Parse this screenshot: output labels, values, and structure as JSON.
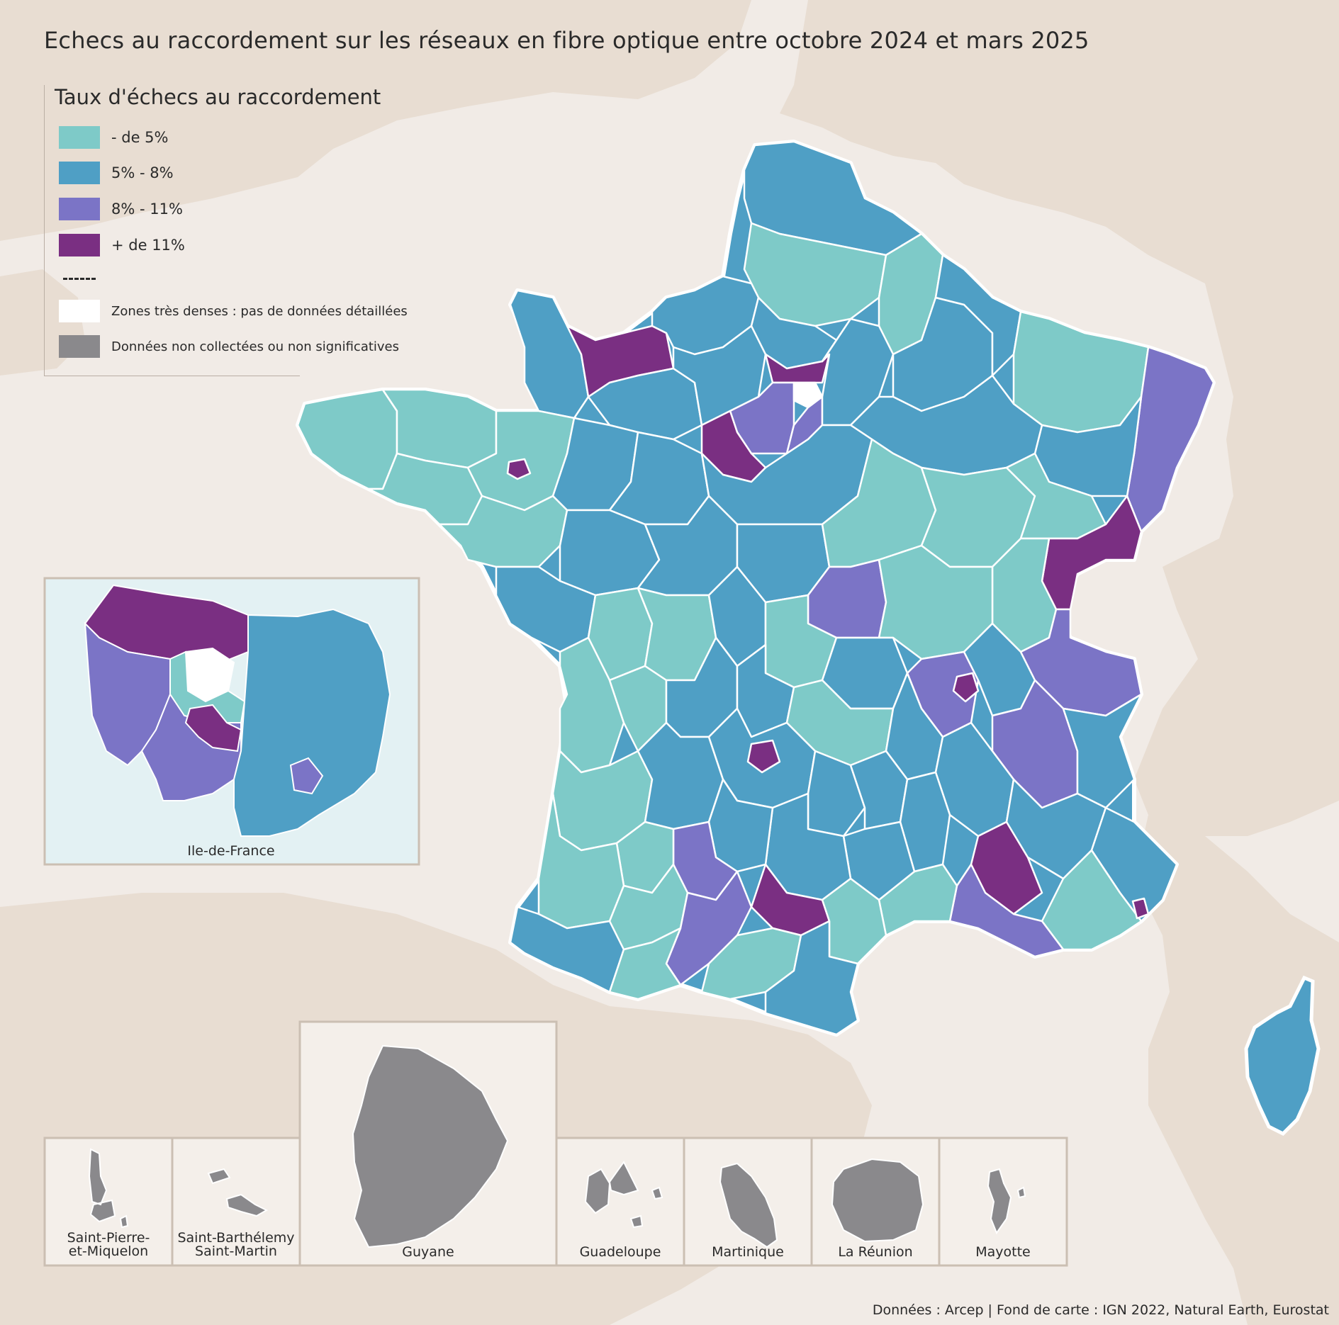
{
  "title": "Echecs au raccordement sur les réseaux en fibre optique entre octobre 2024 et mars 2025",
  "legend": {
    "title": "Taux d'échecs au raccordement",
    "classes": [
      {
        "label": "- de 5%",
        "color": "#7ecac8"
      },
      {
        "label": "5% - 8%",
        "color": "#4f9fc5"
      },
      {
        "label": "8% - 11%",
        "color": "#7b74c6"
      },
      {
        "label": "+ de 11%",
        "color": "#7a2f82"
      }
    ],
    "dense_zone": {
      "label": "Zones très denses : pas de données détaillées",
      "color": "#ffffff"
    },
    "no_data": {
      "label": "Données non collectées ou non significatives",
      "color": "#8a898c"
    }
  },
  "inset_idf": {
    "label": "Ile-de-France"
  },
  "overseas_territories": [
    {
      "label_line1": "Saint-Pierre-",
      "label_line2": "et-Miquelon",
      "fill": "no_data"
    },
    {
      "label_line1": "Saint-Barthélemy",
      "label_line2": "Saint-Martin",
      "fill": "no_data"
    },
    {
      "label_line1": "Guyane",
      "label_line2": "",
      "fill": "no_data"
    },
    {
      "label_line1": "Guadeloupe",
      "label_line2": "",
      "fill": "no_data"
    },
    {
      "label_line1": "Martinique",
      "label_line2": "",
      "fill": "no_data"
    },
    {
      "label_line1": "La Réunion",
      "label_line2": "",
      "fill": "no_data"
    },
    {
      "label_line1": "Mayotte",
      "label_line2": "",
      "fill": "no_data"
    }
  ],
  "colors": {
    "background": "#f1ebe6",
    "land_foreign": "#e8ddd2",
    "sea": "#f4efea",
    "border": "#ffffff"
  },
  "source": "Données : Arcep | Fond de carte : IGN 2022, Natural Earth, Eurostat"
}
